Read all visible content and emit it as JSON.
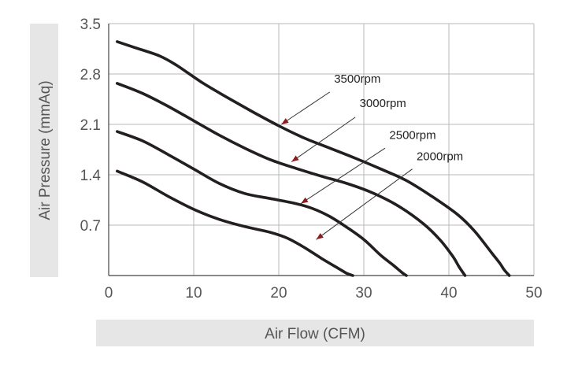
{
  "chart_data": {
    "type": "line",
    "title": "",
    "xlabel": "Air Flow (CFM)",
    "ylabel": "Air Pressure (mmAq)",
    "xlim": [
      0,
      50
    ],
    "ylim": [
      0,
      3.5
    ],
    "xticks": [
      0,
      10,
      20,
      30,
      40,
      50
    ],
    "yticks": [
      0.7,
      1.4,
      2.1,
      2.8,
      3.5
    ],
    "xtick_labels": [
      "0",
      "10",
      "20",
      "30",
      "40",
      "50"
    ],
    "ytick_labels": [
      "0.7",
      "1.4",
      "2.1",
      "2.8",
      "3.5"
    ],
    "grid": true,
    "colors": {
      "grid": "#b8b8b8",
      "axis": "#444444",
      "curve": "#231f20",
      "arrow": "#8a1c1c",
      "label_band": "#e6e6e6"
    },
    "series": [
      {
        "name": "3500rpm",
        "x": [
          1,
          3,
          6,
          8,
          11,
          14,
          17,
          20,
          23,
          26,
          29,
          32,
          35,
          38,
          41,
          43,
          45,
          46,
          46.5,
          47.1
        ],
        "y": [
          3.25,
          3.17,
          3.05,
          2.92,
          2.68,
          2.47,
          2.27,
          2.08,
          1.91,
          1.77,
          1.63,
          1.48,
          1.32,
          1.1,
          0.85,
          0.62,
          0.32,
          0.17,
          0.08,
          0.0
        ]
      },
      {
        "name": "3000rpm",
        "x": [
          1,
          4,
          7,
          10,
          13,
          16,
          19,
          22,
          25,
          28,
          31,
          34,
          37,
          39,
          40.5,
          41.2,
          41.9
        ],
        "y": [
          2.67,
          2.53,
          2.35,
          2.15,
          1.95,
          1.77,
          1.61,
          1.49,
          1.38,
          1.28,
          1.15,
          0.97,
          0.72,
          0.49,
          0.26,
          0.12,
          0.0
        ]
      },
      {
        "name": "2500rpm",
        "x": [
          1,
          4,
          7,
          10,
          13,
          16,
          19,
          22,
          24,
          26,
          28,
          30,
          32,
          33.5,
          34.5,
          35
        ],
        "y": [
          2.0,
          1.87,
          1.68,
          1.48,
          1.28,
          1.14,
          1.07,
          1.0,
          0.93,
          0.82,
          0.67,
          0.5,
          0.28,
          0.14,
          0.04,
          0.0
        ]
      },
      {
        "name": "2000rpm",
        "x": [
          1,
          4,
          7,
          10,
          13,
          16,
          19,
          21,
          23,
          25,
          27,
          28,
          28.7
        ],
        "y": [
          1.45,
          1.3,
          1.1,
          0.92,
          0.78,
          0.68,
          0.6,
          0.52,
          0.39,
          0.24,
          0.1,
          0.03,
          0.0
        ]
      }
    ],
    "annotations": [
      {
        "text": "3500rpm",
        "label_x": 26.5,
        "label_y": 2.68,
        "arrow_from": [
          26.0,
          2.55
        ],
        "arrow_to": [
          20.3,
          2.1
        ]
      },
      {
        "text": "3000rpm",
        "label_x": 29.5,
        "label_y": 2.34,
        "arrow_from": [
          29.0,
          2.2
        ],
        "arrow_to": [
          21.5,
          1.58
        ]
      },
      {
        "text": "2500rpm",
        "label_x": 33.0,
        "label_y": 1.9,
        "arrow_from": [
          32.5,
          1.77
        ],
        "arrow_to": [
          22.6,
          1.0
        ]
      },
      {
        "text": "2000rpm",
        "label_x": 36.2,
        "label_y": 1.6,
        "arrow_from": [
          35.7,
          1.48
        ],
        "arrow_to": [
          24.4,
          0.5
        ]
      }
    ]
  }
}
